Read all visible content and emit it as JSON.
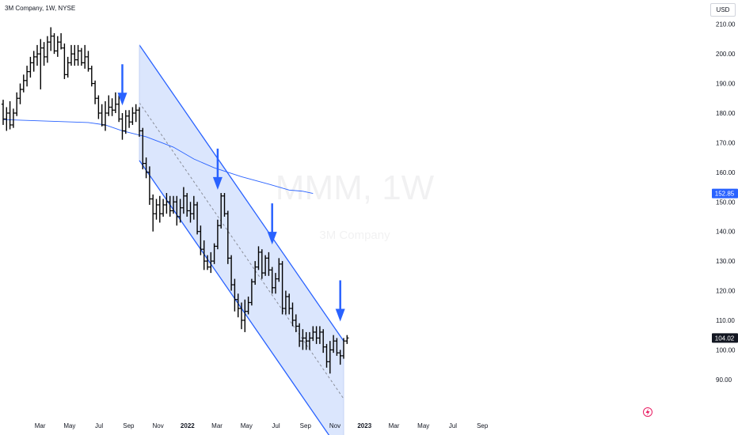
{
  "header": {
    "title": "3M Company, 1W, NYSE",
    "currency": "USD"
  },
  "watermark": {
    "symbol": "MMM, 1W",
    "name": "3M Company"
  },
  "chart_data": {
    "type": "ohlc",
    "title": "3M Company, 1W, NYSE",
    "ylim": [
      83,
      215
    ],
    "y_ticks": [
      "210.00",
      "200.00",
      "190.00",
      "180.00",
      "170.00",
      "160.00",
      "150.00",
      "140.00",
      "130.00",
      "120.00",
      "110.00",
      "100.00",
      "90.00"
    ],
    "y_tick_values": [
      210,
      200,
      190,
      180,
      170,
      160,
      150,
      140,
      130,
      120,
      110,
      100,
      90
    ],
    "x_tick_labels": [
      "Mar",
      "May",
      "Jul",
      "Sep",
      "Nov",
      "2022",
      "Mar",
      "May",
      "Jul",
      "Sep",
      "Nov",
      "2023",
      "Mar",
      "May",
      "Jul",
      "Sep"
    ],
    "x_tick_months": [
      2,
      4,
      6,
      8,
      10,
      12,
      14,
      16,
      18,
      20,
      22,
      24,
      26,
      28,
      30,
      32
    ],
    "x_tick_bold": [
      false,
      false,
      false,
      false,
      false,
      true,
      false,
      false,
      false,
      false,
      false,
      true,
      false,
      false,
      false,
      false
    ],
    "price_labels": [
      {
        "text": "152.85",
        "value": 152.85,
        "color": "#2962ff"
      },
      {
        "text": "104.02",
        "value": 104.02,
        "color": "#131722"
      }
    ],
    "bars": [
      [
        183.0,
        184.5,
        176.0,
        178.0
      ],
      [
        178.0,
        182.0,
        174.0,
        180.0
      ],
      [
        180.0,
        184.0,
        174.5,
        176.0
      ],
      [
        176.0,
        181.5,
        175.0,
        180.0
      ],
      [
        180.0,
        187.0,
        179.0,
        185.0
      ],
      [
        185.0,
        190.0,
        183.0,
        188.0
      ],
      [
        188.0,
        193.0,
        187.0,
        191.0
      ],
      [
        191.0,
        196.0,
        189.0,
        194.0
      ],
      [
        194.0,
        199.0,
        192.0,
        197.0
      ],
      [
        197.0,
        201.0,
        194.0,
        199.0
      ],
      [
        199.0,
        203.0,
        196.0,
        200.0
      ],
      [
        200.0,
        205.0,
        188.0,
        202.0
      ],
      [
        202.0,
        204.0,
        196.0,
        199.0
      ],
      [
        199.0,
        206.0,
        197.0,
        204.0
      ],
      [
        204.0,
        209.0,
        201.0,
        206.0
      ],
      [
        206.0,
        207.0,
        200.0,
        201.0
      ],
      [
        201.0,
        206.0,
        199.0,
        204.0
      ],
      [
        204.0,
        207.0,
        201.5,
        202.0
      ],
      [
        202.0,
        203.5,
        191.5,
        193.0
      ],
      [
        193.0,
        199.0,
        192.0,
        197.0
      ],
      [
        197.0,
        203.0,
        196.0,
        200.0
      ],
      [
        200.0,
        203.0,
        196.0,
        198.0
      ],
      [
        198.0,
        203.0,
        196.0,
        201.0
      ],
      [
        201.0,
        202.0,
        196.0,
        197.0
      ],
      [
        197.0,
        203.0,
        195.0,
        199.0
      ],
      [
        199.0,
        201.0,
        194.0,
        195.0
      ],
      [
        195.0,
        196.0,
        189.0,
        190.0
      ],
      [
        190.0,
        191.0,
        183.0,
        185.0
      ],
      [
        185.0,
        186.0,
        178.0,
        180.0
      ],
      [
        180.0,
        183.0,
        175.5,
        176.0
      ],
      [
        176.0,
        184.0,
        174.0,
        180.0
      ],
      [
        180.0,
        186.0,
        179.0,
        182.0
      ],
      [
        182.0,
        185.0,
        179.0,
        181.0
      ],
      [
        181.0,
        187.0,
        180.0,
        183.0
      ],
      [
        183.0,
        186.0,
        177.0,
        178.0
      ],
      [
        178.0,
        180.0,
        171.0,
        174.0
      ],
      [
        174.0,
        181.0,
        173.0,
        179.0
      ],
      [
        179.0,
        181.0,
        175.0,
        177.0
      ],
      [
        177.0,
        182.0,
        176.0,
        180.0
      ],
      [
        180.0,
        183.0,
        177.0,
        181.0
      ],
      [
        181.0,
        182.0,
        172.0,
        174.0
      ],
      [
        174.0,
        175.0,
        161.0,
        163.0
      ],
      [
        163.0,
        165.0,
        158.0,
        160.0
      ],
      [
        160.0,
        162.0,
        149.0,
        151.0
      ],
      [
        151.0,
        152.5,
        140.0,
        146.0
      ],
      [
        146.0,
        151.0,
        144.0,
        149.0
      ],
      [
        149.0,
        152.0,
        143.0,
        146.0
      ],
      [
        146.0,
        151.0,
        145.0,
        149.0
      ],
      [
        149.0,
        153.0,
        146.0,
        150.0
      ],
      [
        150.0,
        152.0,
        145.0,
        147.0
      ],
      [
        147.0,
        152.0,
        146.0,
        150.0
      ],
      [
        150.0,
        152.0,
        142.0,
        145.0
      ],
      [
        145.0,
        151.0,
        143.0,
        148.0
      ],
      [
        148.0,
        155.0,
        146.0,
        152.0
      ],
      [
        152.0,
        153.0,
        145.0,
        147.0
      ],
      [
        147.0,
        150.0,
        143.0,
        146.0
      ],
      [
        146.0,
        152.0,
        144.0,
        149.0
      ],
      [
        149.0,
        150.0,
        139.0,
        140.0
      ],
      [
        140.0,
        142.0,
        132.0,
        134.0
      ],
      [
        134.0,
        137.0,
        127.0,
        130.0
      ],
      [
        130.0,
        132.0,
        127.0,
        128.0
      ],
      [
        128.0,
        133.0,
        126.0,
        130.0
      ],
      [
        130.0,
        136.0,
        129.0,
        135.0
      ],
      [
        135.0,
        144.0,
        134.0,
        142.0
      ],
      [
        142.0,
        153.0,
        141.0,
        152.0
      ],
      [
        152.0,
        153.0,
        145.0,
        146.0
      ],
      [
        146.0,
        147.0,
        129.0,
        131.0
      ],
      [
        131.0,
        132.0,
        120.0,
        122.0
      ],
      [
        122.0,
        124.0,
        113.0,
        117.0
      ],
      [
        117.0,
        119.0,
        111.0,
        114.0
      ],
      [
        114.0,
        116.0,
        107.0,
        110.0
      ],
      [
        110.0,
        117.0,
        106.0,
        113.0
      ],
      [
        113.0,
        118.0,
        112.0,
        116.0
      ],
      [
        116.0,
        124.0,
        115.0,
        123.0
      ],
      [
        123.0,
        130.0,
        122.0,
        128.0
      ],
      [
        128.0,
        135.0,
        127.0,
        133.0
      ],
      [
        133.0,
        134.0,
        124.0,
        126.0
      ],
      [
        126.0,
        132.0,
        125.0,
        131.0
      ],
      [
        131.0,
        133.0,
        125.0,
        127.0
      ],
      [
        127.0,
        128.0,
        119.0,
        121.0
      ],
      [
        121.0,
        126.0,
        119.0,
        124.0
      ],
      [
        124.0,
        131.0,
        123.0,
        129.0
      ],
      [
        129.0,
        130.0,
        112.0,
        114.0
      ],
      [
        114.0,
        120.0,
        112.0,
        118.0
      ],
      [
        118.0,
        119.0,
        112.0,
        114.0
      ],
      [
        114.0,
        116.0,
        108.0,
        110.0
      ],
      [
        110.0,
        112.0,
        106.0,
        108.0
      ],
      [
        108.0,
        109.0,
        101.0,
        103.0
      ],
      [
        103.0,
        107.0,
        100.0,
        104.0
      ],
      [
        104.0,
        106.0,
        100.0,
        103.0
      ],
      [
        103.0,
        106.0,
        100.0,
        104.0
      ],
      [
        104.0,
        108.0,
        103.0,
        106.0
      ],
      [
        106.0,
        108.0,
        102.0,
        104.0
      ],
      [
        104.0,
        108.0,
        102.0,
        106.0
      ],
      [
        106.0,
        107.0,
        99.0,
        101.0
      ],
      [
        101.0,
        102.0,
        94.0,
        96.0
      ],
      [
        96.0,
        103.0,
        92.0,
        100.0
      ],
      [
        100.0,
        105.0,
        99.0,
        103.0
      ],
      [
        103.0,
        104.0,
        98.0,
        99.0
      ],
      [
        99.0,
        100.0,
        95.0,
        98.0
      ],
      [
        98.0,
        104.0,
        97.0,
        103.0
      ],
      [
        103.0,
        105.0,
        102.0,
        104.02
      ]
    ],
    "ma_line": {
      "color": "#2962ff",
      "last_value": 152.85,
      "points": [
        [
          0,
          177.8
        ],
        [
          10,
          177.4
        ],
        [
          20,
          177.0
        ],
        [
          25,
          176.8
        ],
        [
          30,
          176.0
        ],
        [
          35,
          174.0
        ],
        [
          42,
          172.0
        ],
        [
          50,
          168.5
        ],
        [
          56,
          164.5
        ],
        [
          62,
          161.5
        ],
        [
          70,
          158.5
        ],
        [
          78,
          156.0
        ],
        [
          84,
          154.0
        ],
        [
          88,
          153.6
        ],
        [
          91,
          152.85
        ]
      ]
    },
    "channel": {
      "fill": "#dbe6fd",
      "border_color": "#2962ff",
      "start_bar": 40,
      "end_bar": 100,
      "upper": [
        203.0,
        103.0
      ],
      "mid": [
        183.5,
        83.5
      ],
      "lower": [
        164.0,
        64.0
      ]
    },
    "arrows": [
      {
        "bar": 35,
        "tip_value": 181.0
      },
      {
        "bar": 63,
        "tip_value": 152.5
      },
      {
        "bar": 79,
        "tip_value": 134.0
      },
      {
        "bar": 99,
        "tip_value": 108.0
      }
    ]
  }
}
